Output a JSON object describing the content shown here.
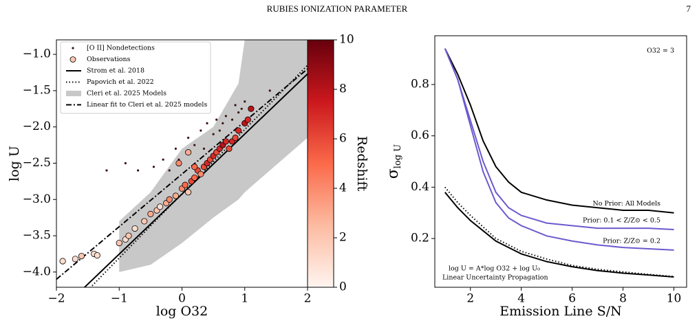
{
  "header": {
    "title": "RUBIES IONIZATION PARAMETER",
    "page": "7"
  },
  "chart_data": [
    {
      "type": "scatter",
      "xlabel": "log O32",
      "ylabel": "log U",
      "xlim": [
        -2,
        2
      ],
      "ylim": [
        -4.21,
        -0.8
      ],
      "xticks": [
        {
          "value": -2,
          "label": "−2"
        },
        {
          "value": -1,
          "label": "−1"
        },
        0,
        1,
        2
      ],
      "yticks": [
        {
          "value": -4,
          "label": "−4.0"
        },
        {
          "value": -3.5,
          "label": "−3.5"
        },
        {
          "value": -3,
          "label": "−3.0"
        },
        {
          "value": -2.5,
          "label": "−2.5"
        },
        {
          "value": -2,
          "label": "−2.0"
        },
        {
          "value": -1.5,
          "label": "−1.5"
        },
        {
          "value": -1,
          "label": "−1.0"
        }
      ],
      "legend": "upper left",
      "colorbar": {
        "label": "Redshift",
        "lim": [
          0,
          10
        ],
        "ticks": [
          0,
          2,
          4,
          6,
          8,
          10
        ],
        "colormap": "Reds"
      },
      "series": [
        {
          "name": "[O II] Nondetections",
          "kind": "points",
          "color": "#3b1212",
          "x": [
            -1.2,
            -0.9,
            -0.7,
            -0.45,
            -0.3,
            -0.2,
            -0.1,
            -0.05,
            0.1,
            0.2,
            0.3,
            0.35,
            0.4,
            0.5,
            0.55,
            0.6,
            0.65,
            0.7,
            0.8,
            0.85,
            0.9,
            0.95,
            1.0,
            1.4
          ],
          "y": [
            -2.6,
            -2.5,
            -2.6,
            -2.55,
            -2.45,
            -2.6,
            -2.3,
            -2.45,
            -2.15,
            -2.25,
            -2.05,
            -2.3,
            -1.95,
            -2.1,
            -1.9,
            -2.05,
            -1.95,
            -1.85,
            -1.9,
            -1.7,
            -1.8,
            -1.75,
            -1.65,
            -1.5
          ]
        },
        {
          "name": "Observations",
          "kind": "colored-points",
          "x": [
            -1.9,
            -1.7,
            -1.6,
            -1.4,
            -1.35,
            -1.0,
            -0.9,
            -0.85,
            -0.75,
            -0.6,
            -0.5,
            -0.4,
            -0.35,
            -0.25,
            -0.2,
            -0.1,
            0,
            0.05,
            0.1,
            0.15,
            0.2,
            0.25,
            0.3,
            0.35,
            0.4,
            0.45,
            0.5,
            0.55,
            0.6,
            0.65,
            0.7,
            0.75,
            0.8,
            0.85,
            0.9,
            1.0,
            1.05,
            1.1,
            -0.05,
            0.2,
            0.1
          ],
          "y": [
            -3.85,
            -3.82,
            -3.78,
            -3.75,
            -3.77,
            -3.6,
            -3.55,
            -3.5,
            -3.4,
            -3.3,
            -3.2,
            -3.15,
            -3.1,
            -3.05,
            -3.0,
            -2.95,
            -2.85,
            -2.8,
            -2.9,
            -2.75,
            -2.7,
            -2.6,
            -2.65,
            -2.55,
            -2.5,
            -2.45,
            -2.4,
            -2.35,
            -2.3,
            -2.25,
            -2.2,
            -2.3,
            -2.2,
            -2.15,
            -2.05,
            -1.95,
            -1.9,
            -1.75,
            -2.5,
            -2.55,
            -2.35
          ],
          "z": [
            1,
            1,
            2,
            1,
            1,
            2,
            1,
            2,
            1,
            2,
            3,
            2,
            1,
            3,
            4,
            3,
            4,
            5,
            2,
            6,
            5,
            6,
            4,
            6,
            7,
            6,
            7,
            6,
            7,
            8,
            7,
            6,
            7,
            6,
            7,
            8,
            7,
            8,
            4,
            5,
            3
          ]
        },
        {
          "name": "Strom et al. 2018",
          "kind": "line",
          "dash": "solid",
          "color": "#000000",
          "x": [
            -1.6,
            2
          ],
          "y": [
            -4.25,
            -1.27
          ]
        },
        {
          "name": "Papovich et al. 2022",
          "kind": "line",
          "dash": "dotted",
          "color": "#000000",
          "x": [
            -1.5,
            2
          ],
          "y": [
            -4.25,
            -1.15
          ]
        },
        {
          "name": "Cleri et al. 2025 Models",
          "kind": "band",
          "color": "#c8c8c8",
          "x": [
            -1.0,
            -0.5,
            0,
            0.5,
            0.9,
            1.0,
            2.0
          ],
          "upper": [
            -3.3,
            -2.9,
            -2.3,
            -2.0,
            -1.4,
            -0.8,
            -0.8
          ],
          "lower": [
            -4.0,
            -3.9,
            -3.6,
            -3.25,
            -3.0,
            -2.9,
            -2.15
          ]
        },
        {
          "name": "Linear fit to Cleri et al. 2025 models",
          "kind": "line",
          "dash": "dashdot",
          "color": "#000000",
          "x": [
            -2,
            2
          ],
          "y": [
            -4.1,
            -1.2
          ]
        }
      ]
    },
    {
      "type": "line",
      "xlabel": "Emission Line S/N",
      "ylabel": "σ",
      "ylabel_sub": "log U",
      "xlim": [
        0.6,
        10.5
      ],
      "ylim": [
        0.01,
        0.99
      ],
      "xticks": [
        2,
        4,
        6,
        8,
        10
      ],
      "yticks": [
        0.2,
        0.4,
        0.6,
        0.8
      ],
      "annotations": [
        "O32 = 3",
        "log U = A*log O32 + log U₀",
        "Linear Uncertainty Propagation"
      ],
      "x": [
        1,
        1.5,
        2,
        2.5,
        3,
        3.5,
        4,
        5,
        6,
        7,
        8,
        9,
        10
      ],
      "series": [
        {
          "name": "No Prior: All Models",
          "color": "#000000",
          "dash": "solid",
          "values": [
            0.94,
            0.84,
            0.72,
            0.58,
            0.48,
            0.42,
            0.38,
            0.35,
            0.33,
            0.32,
            0.31,
            0.31,
            0.3
          ]
        },
        {
          "name": "Prior: 0.1 < Z/Z⊙ < 0.5",
          "color": "#6a5acd",
          "dash": "solid",
          "values": [
            0.94,
            0.82,
            0.66,
            0.5,
            0.38,
            0.32,
            0.29,
            0.26,
            0.25,
            0.24,
            0.24,
            0.24,
            0.235
          ]
        },
        {
          "name": "Prior: Z/Z⊙ = 0.2",
          "color": "#6a5acd",
          "dash": "solid",
          "values": [
            0.94,
            0.82,
            0.64,
            0.46,
            0.34,
            0.28,
            0.25,
            0.21,
            0.19,
            0.175,
            0.165,
            0.16,
            0.155
          ]
        },
        {
          "color": "#000000",
          "dash": "solid",
          "values": [
            0.38,
            0.32,
            0.27,
            0.23,
            0.19,
            0.165,
            0.14,
            0.11,
            0.09,
            0.075,
            0.065,
            0.058,
            0.05
          ]
        },
        {
          "color": "#000000",
          "dash": "dotted",
          "values": [
            0.4,
            0.34,
            0.29,
            0.245,
            0.2,
            0.175,
            0.15,
            0.12,
            0.095,
            0.08,
            0.07,
            0.06,
            0.052
          ]
        }
      ]
    }
  ]
}
